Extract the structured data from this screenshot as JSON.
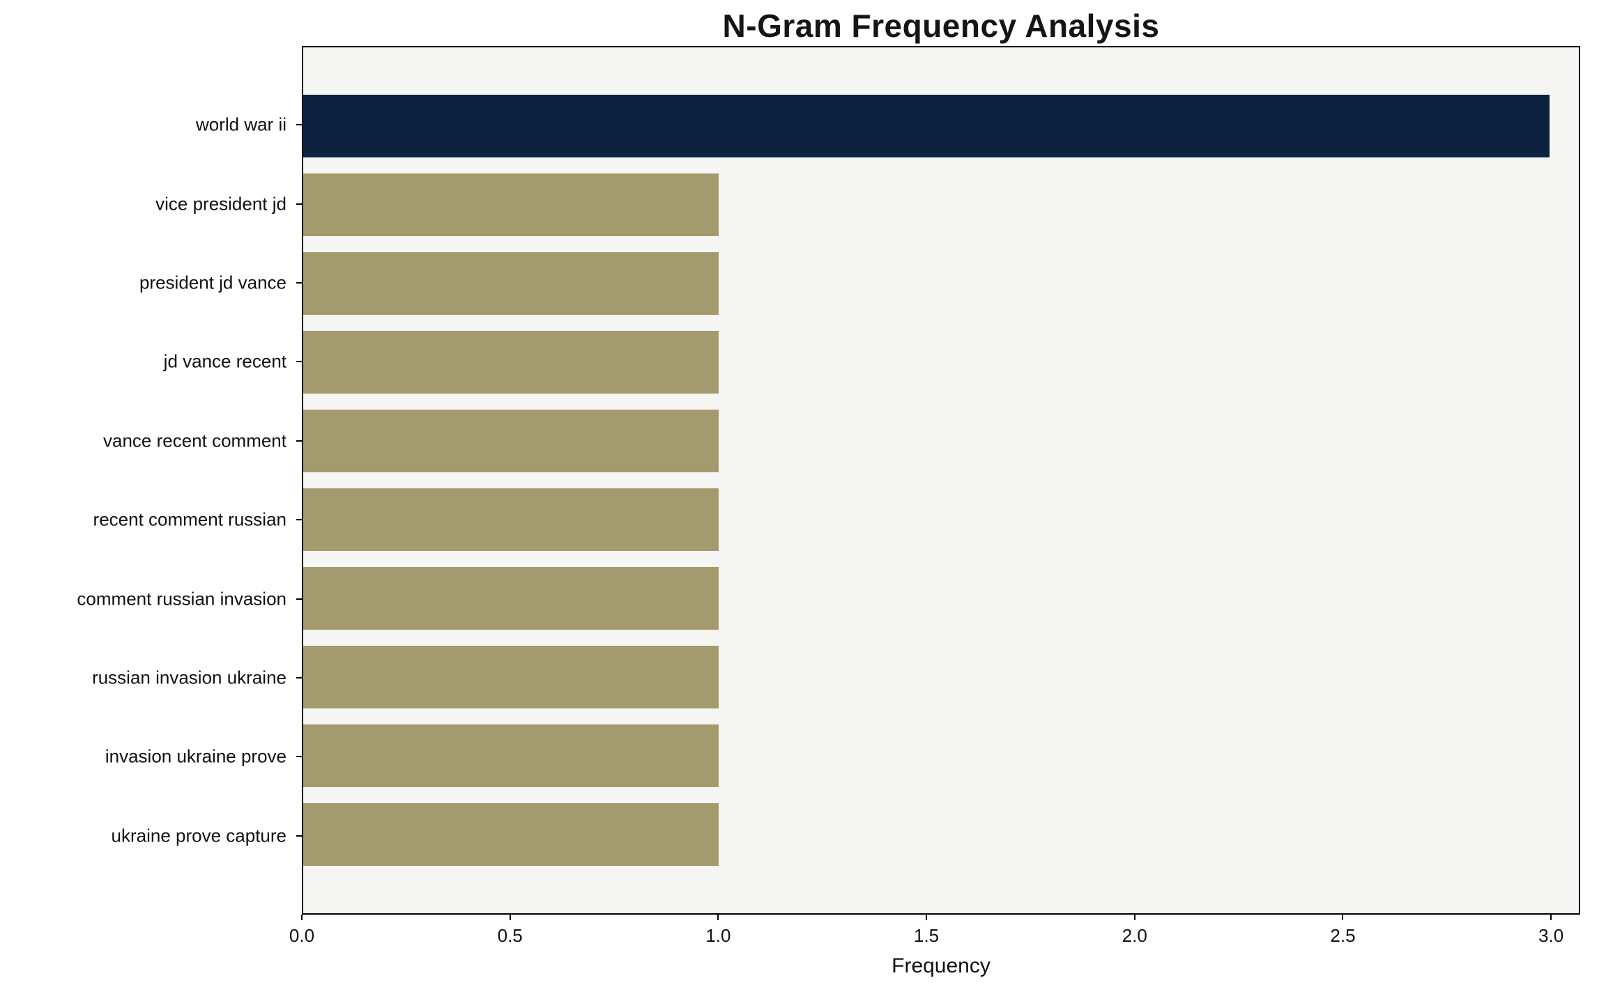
{
  "chart_data": {
    "type": "bar",
    "orientation": "horizontal",
    "title": "N-Gram Frequency Analysis",
    "xlabel": "Frequency",
    "ylabel": "",
    "categories": [
      "world war ii",
      "vice president jd",
      "president jd vance",
      "jd vance recent",
      "vance recent comment",
      "recent comment russian",
      "comment russian invasion",
      "russian invasion ukraine",
      "invasion ukraine prove",
      "ukraine prove capture"
    ],
    "values": [
      3,
      1,
      1,
      1,
      1,
      1,
      1,
      1,
      1,
      1
    ],
    "xlim": [
      0,
      3.07
    ],
    "xticks": [
      0.0,
      0.5,
      1.0,
      1.5,
      2.0,
      2.5,
      3.0
    ],
    "xtick_labels": [
      "0.0",
      "0.5",
      "1.0",
      "1.5",
      "2.0",
      "2.5",
      "3.0"
    ],
    "highlight_index": 0,
    "grid": false,
    "legend_position": "none",
    "colors": {
      "highlight_bar": "#0c2340",
      "base_bar": "#a39b6e",
      "plot_background": "#f5f5f4",
      "figure_background": "#ffffff",
      "spine": "#000000"
    }
  }
}
